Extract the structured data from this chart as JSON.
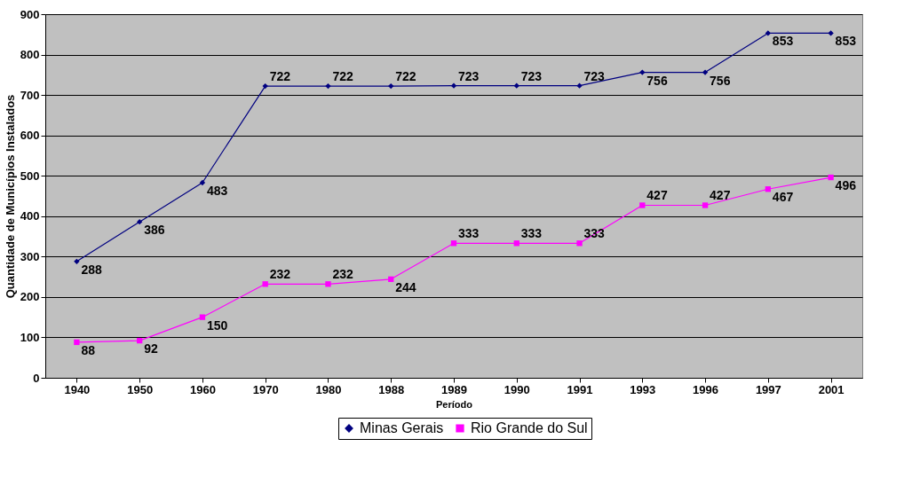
{
  "chart_data": {
    "type": "line",
    "xlabel": "Período",
    "ylabel": "Quantidade de Municípios Instalados",
    "categories": [
      "1940",
      "1950",
      "1960",
      "1970",
      "1980",
      "1988",
      "1989",
      "1990",
      "1991",
      "1993",
      "1996",
      "1997",
      "2001"
    ],
    "series": [
      {
        "name": "Minas Gerais",
        "color": "#000080",
        "marker": "diamond",
        "values": [
          288,
          386,
          483,
          722,
          722,
          722,
          723,
          723,
          723,
          756,
          756,
          853,
          853
        ]
      },
      {
        "name": "Rio Grande do Sul",
        "color": "#ff00ff",
        "marker": "square",
        "values": [
          88,
          92,
          150,
          232,
          232,
          244,
          333,
          333,
          333,
          427,
          427,
          467,
          496
        ]
      }
    ],
    "ylim": [
      0,
      900
    ],
    "yticks": [
      0,
      100,
      200,
      300,
      400,
      500,
      600,
      700,
      800,
      900
    ],
    "grid": "y",
    "legend": "bottom",
    "data_labels": true
  }
}
